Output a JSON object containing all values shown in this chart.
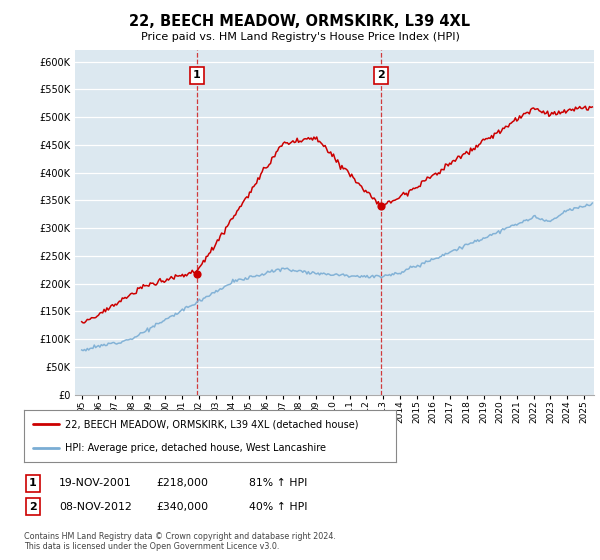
{
  "title": "22, BEECH MEADOW, ORMSKIRK, L39 4XL",
  "subtitle": "Price paid vs. HM Land Registry's House Price Index (HPI)",
  "legend_line1": "22, BEECH MEADOW, ORMSKIRK, L39 4XL (detached house)",
  "legend_line2": "HPI: Average price, detached house, West Lancashire",
  "transaction1_date": "19-NOV-2001",
  "transaction1_price": "£218,000",
  "transaction1_pct": "81% ↑ HPI",
  "transaction2_date": "08-NOV-2012",
  "transaction2_price": "£340,000",
  "transaction2_pct": "40% ↑ HPI",
  "footer": "Contains HM Land Registry data © Crown copyright and database right 2024.\nThis data is licensed under the Open Government Licence v3.0.",
  "ylim": [
    0,
    620000
  ],
  "red_color": "#cc0000",
  "blue_color": "#7aadd4",
  "vline_color": "#cc0000",
  "background_color": "#dce8f0",
  "t1_year": 2001.88,
  "t2_year": 2012.87,
  "t1_price": 218000,
  "t2_price": 340000
}
